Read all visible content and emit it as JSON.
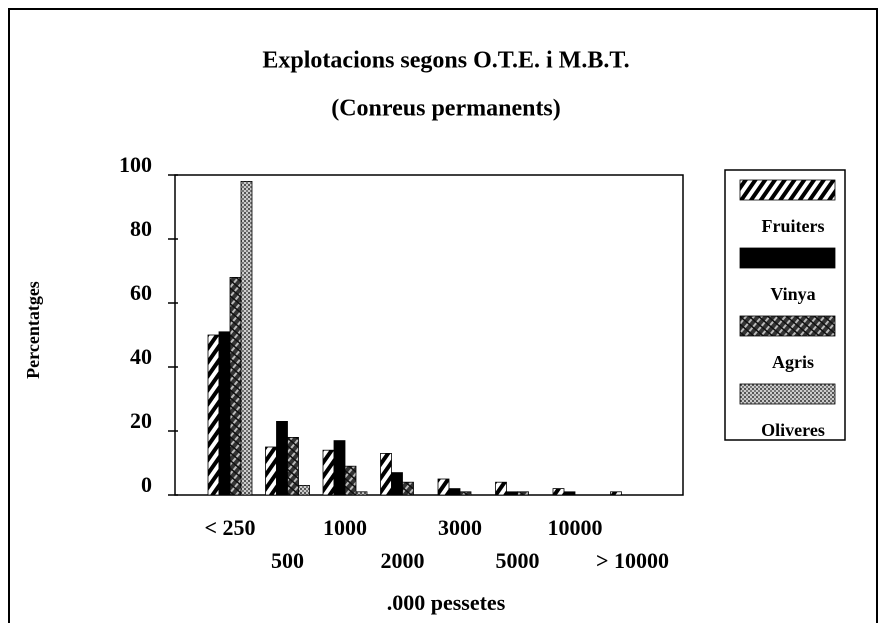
{
  "chart_data": {
    "type": "bar",
    "title": "Explotacions segons O.T.E. i M.B.T.",
    "subtitle": "(Conreus permanents)",
    "ylabel": "Percentatges",
    "xlabel": ".000 pessetes",
    "categories": [
      "< 250",
      "500",
      "1000",
      "2000",
      "3000",
      "5000",
      "10000",
      "> 10000"
    ],
    "series": [
      {
        "name": "Fruiters",
        "color": "#000000",
        "pattern": "hatch",
        "values": [
          50,
          15,
          14,
          13,
          5,
          4,
          2,
          1
        ]
      },
      {
        "name": "Vinya",
        "color": "#000000",
        "pattern": "solid",
        "values": [
          51,
          23,
          17,
          7,
          2,
          1,
          1,
          0
        ]
      },
      {
        "name": "Agris",
        "color": "#000000",
        "pattern": "cross",
        "values": [
          68,
          18,
          9,
          4,
          1,
          1,
          0,
          0
        ]
      },
      {
        "name": "Oliveres",
        "color": "#000000",
        "pattern": "dots",
        "values": [
          98,
          3,
          1,
          0,
          0,
          0,
          0,
          0
        ]
      }
    ],
    "ylim": [
      0,
      100
    ],
    "yticks": [
      0,
      20,
      40,
      60,
      80,
      100
    ],
    "legend": "right"
  }
}
